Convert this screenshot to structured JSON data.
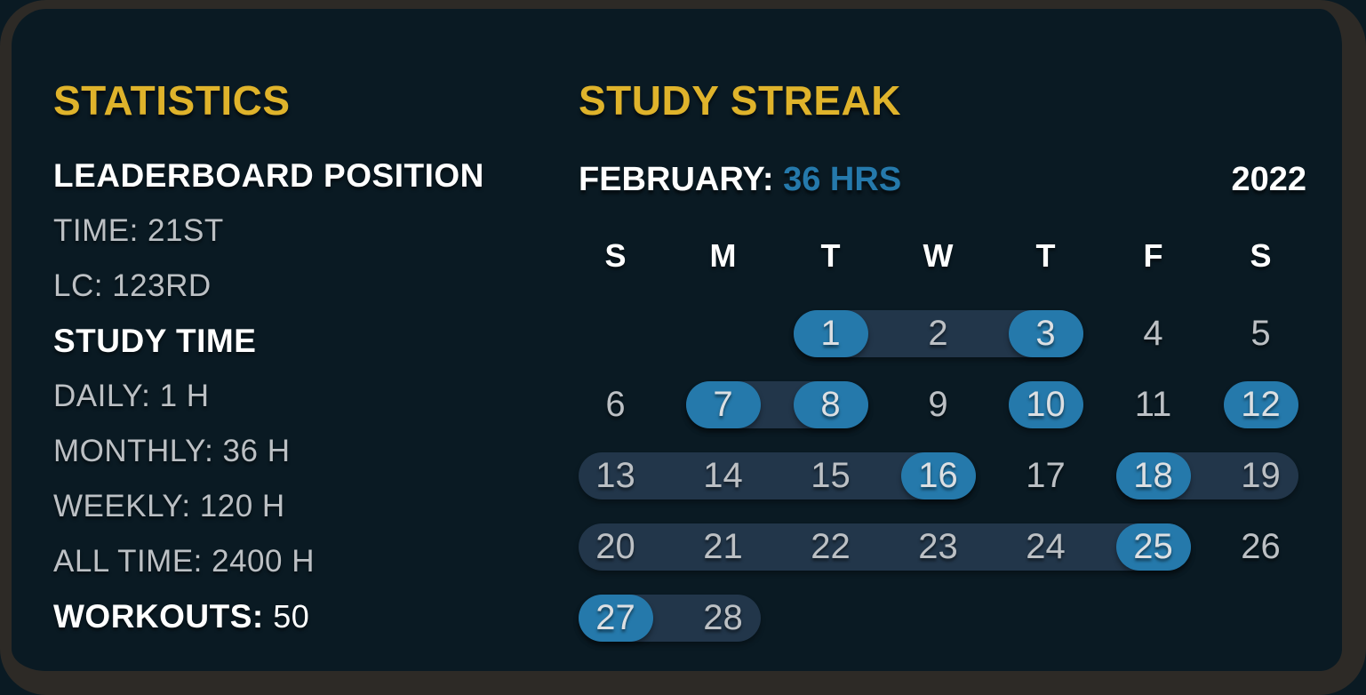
{
  "colors": {
    "background": "#0a1a23",
    "frame_border": "#2d2a26",
    "accent_yellow": "#dfb32b",
    "accent_blue": "#2579ab",
    "streak_band": "#22364a",
    "text_white": "#ffffff",
    "text_gray": "#bcc0c4"
  },
  "statistics": {
    "title": "STATISTICS",
    "items": [
      {
        "text": "LEADERBOARD POSITION",
        "style": "header"
      },
      {
        "text": "TIME: 21ST",
        "style": "stat"
      },
      {
        "text": "LC: 123RD",
        "style": "stat"
      },
      {
        "text": "STUDY TIME",
        "style": "header"
      },
      {
        "text": "DAILY: 1 H",
        "style": "stat"
      },
      {
        "text": "MONTHLY: 36 H",
        "style": "stat"
      },
      {
        "text": "WEEKLY: 120 H",
        "style": "stat"
      },
      {
        "text": "ALL TIME: 2400 H",
        "style": "stat"
      },
      {
        "text": "WORKOUTS:",
        "value": " 50",
        "style": "header_value"
      }
    ]
  },
  "study_streak": {
    "title": "STUDY STREAK",
    "month_label": "FEBRUARY:",
    "month_total": "36 HRS",
    "year": "2022",
    "day_headers": [
      "S",
      "M",
      "T",
      "W",
      "T",
      "F",
      "S"
    ],
    "highlighted_days": [
      1,
      3,
      7,
      8,
      10,
      12,
      16,
      18,
      25,
      27
    ],
    "weeks": [
      {
        "days": [
          {
            "n": 1,
            "col": 2,
            "highlighted": true
          },
          {
            "n": 2,
            "col": 3,
            "highlighted": false
          },
          {
            "n": 3,
            "col": 4,
            "highlighted": true
          },
          {
            "n": 4,
            "col": 5,
            "highlighted": false
          },
          {
            "n": 5,
            "col": 6,
            "highlighted": false
          }
        ],
        "bands": [
          {
            "from_col": 2,
            "to_col": 4
          }
        ]
      },
      {
        "days": [
          {
            "n": 6,
            "col": 0,
            "highlighted": false
          },
          {
            "n": 7,
            "col": 1,
            "highlighted": true
          },
          {
            "n": 8,
            "col": 2,
            "highlighted": true
          },
          {
            "n": 9,
            "col": 3,
            "highlighted": false
          },
          {
            "n": 10,
            "col": 4,
            "highlighted": true
          },
          {
            "n": 11,
            "col": 5,
            "highlighted": false
          },
          {
            "n": 12,
            "col": 6,
            "highlighted": true
          }
        ],
        "bands": [
          {
            "from_col": 1,
            "to_col": 2
          }
        ]
      },
      {
        "days": [
          {
            "n": 13,
            "col": 0,
            "highlighted": false
          },
          {
            "n": 14,
            "col": 1,
            "highlighted": false
          },
          {
            "n": 15,
            "col": 2,
            "highlighted": false
          },
          {
            "n": 16,
            "col": 3,
            "highlighted": true
          },
          {
            "n": 17,
            "col": 4,
            "highlighted": false
          },
          {
            "n": 18,
            "col": 5,
            "highlighted": true
          },
          {
            "n": 19,
            "col": 6,
            "highlighted": false
          }
        ],
        "bands": [
          {
            "from_col": 0,
            "to_col": 3
          },
          {
            "from_col": 5,
            "to_col": 6
          }
        ]
      },
      {
        "days": [
          {
            "n": 20,
            "col": 0,
            "highlighted": false
          },
          {
            "n": 21,
            "col": 1,
            "highlighted": false
          },
          {
            "n": 22,
            "col": 2,
            "highlighted": false
          },
          {
            "n": 23,
            "col": 3,
            "highlighted": false
          },
          {
            "n": 24,
            "col": 4,
            "highlighted": false
          },
          {
            "n": 25,
            "col": 5,
            "highlighted": true
          },
          {
            "n": 26,
            "col": 6,
            "highlighted": false
          }
        ],
        "bands": [
          {
            "from_col": 0,
            "to_col": 5
          }
        ]
      },
      {
        "days": [
          {
            "n": 27,
            "col": 0,
            "highlighted": true
          },
          {
            "n": 28,
            "col": 1,
            "highlighted": false
          }
        ],
        "bands": [
          {
            "from_col": 0,
            "to_col": 1
          }
        ]
      }
    ]
  }
}
